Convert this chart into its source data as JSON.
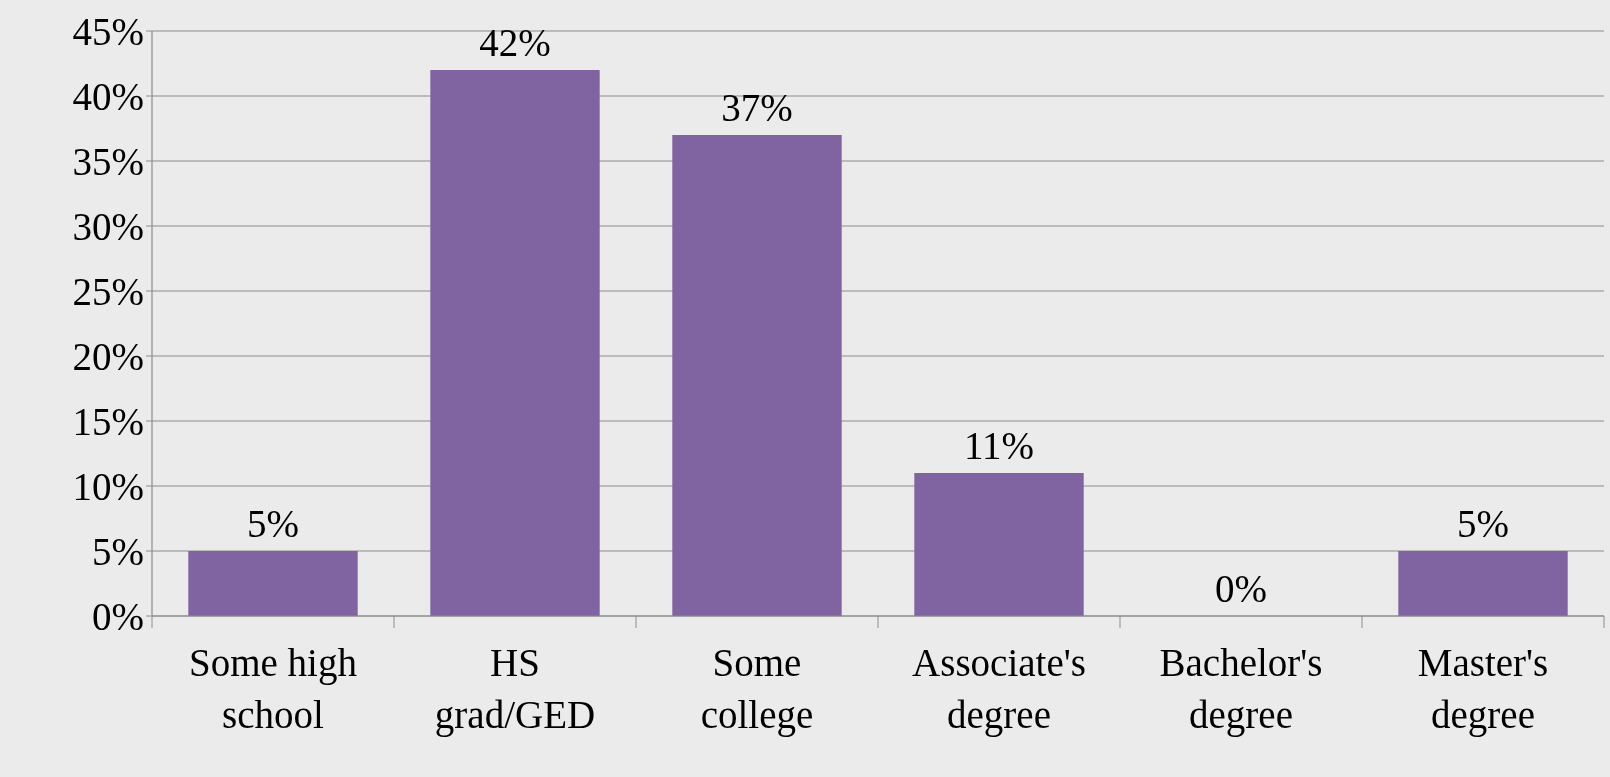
{
  "chart_data": {
    "type": "bar",
    "categories": [
      "Some high school",
      "HS grad/GED",
      "Some college",
      "Associate's degree",
      "Bachelor's degree",
      "Master's degree"
    ],
    "values": [
      5,
      42,
      37,
      11,
      0,
      5
    ],
    "value_labels": [
      "5%",
      "42%",
      "37%",
      "11%",
      "0%",
      "5%"
    ],
    "color": "#8064a2",
    "ylim": [
      0,
      45
    ],
    "yticks": [
      {
        "value": 0,
        "label": "0%"
      },
      {
        "value": 5,
        "label": "5%"
      },
      {
        "value": 10,
        "label": "10%"
      },
      {
        "value": 15,
        "label": "15%"
      },
      {
        "value": 20,
        "label": "20%"
      },
      {
        "value": 25,
        "label": "25%"
      },
      {
        "value": 30,
        "label": "30%"
      },
      {
        "value": 35,
        "label": "35%"
      },
      {
        "value": 40,
        "label": "40%"
      },
      {
        "value": 45,
        "label": "45%"
      }
    ],
    "grid": "y"
  }
}
